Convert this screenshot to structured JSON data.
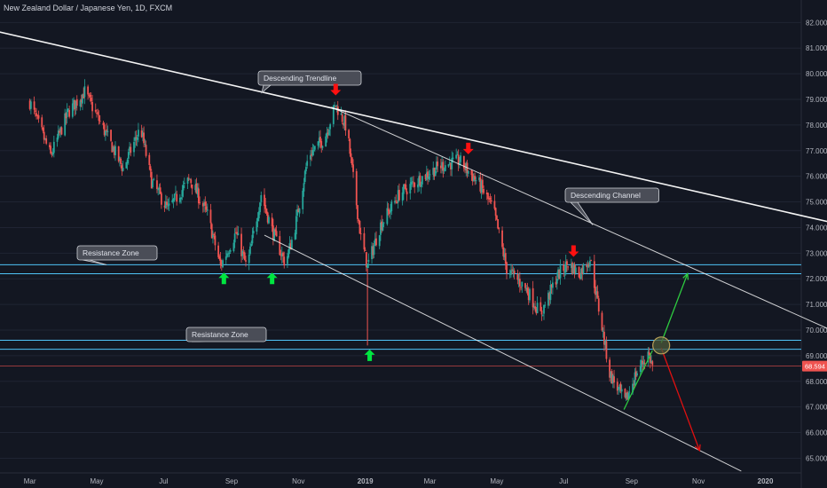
{
  "header": {
    "symbol_title": "New Zealand Dollar / Japanese Yen, 1D, FXCM"
  },
  "colors": {
    "background": "#131722",
    "bull": "#26a69a",
    "bear": "#ef5350",
    "zone_line": "#4fc3f7",
    "trendline": "#ffffff",
    "price_line": "#ef5350",
    "up_arrow": "#00e640",
    "down_arrow": "#ff1010",
    "projection_up": "#2ecc40",
    "projection_down": "#e01010"
  },
  "chart_data": {
    "type": "candlestick",
    "title": "New Zealand Dollar / Japanese Yen, 1D, FXCM",
    "ylim": [
      64.6,
      82.6
    ],
    "y_ticks": [
      "82.000",
      "81.000",
      "80.000",
      "79.000",
      "78.000",
      "77.000",
      "76.000",
      "75.000",
      "74.000",
      "73.000",
      "72.000",
      "71.000",
      "70.000",
      "69.000",
      "68.000",
      "67.000",
      "66.000",
      "65.000"
    ],
    "x_ticks": [
      "Mar",
      "May",
      "Jul",
      "Sep",
      "Nov",
      "2019",
      "Mar",
      "May",
      "Jul",
      "Sep",
      "Nov",
      "2020"
    ],
    "last_price": "68.594",
    "price_path": [
      [
        "2018-03-01",
        78.9
      ],
      [
        "2018-03-20",
        76.8
      ],
      [
        "2018-04-05",
        78.5
      ],
      [
        "2018-04-20",
        79.3
      ],
      [
        "2018-05-10",
        77.6
      ],
      [
        "2018-05-25",
        76.3
      ],
      [
        "2018-06-10",
        77.9
      ],
      [
        "2018-06-20",
        75.8
      ],
      [
        "2018-07-05",
        74.7
      ],
      [
        "2018-07-25",
        75.9
      ],
      [
        "2018-08-10",
        74.5
      ],
      [
        "2018-08-22",
        72.5
      ],
      [
        "2018-09-05",
        73.8
      ],
      [
        "2018-09-15",
        72.4
      ],
      [
        "2018-09-28",
        75.3
      ],
      [
        "2018-10-08",
        73.9
      ],
      [
        "2018-10-20",
        72.6
      ],
      [
        "2018-10-28",
        73.8
      ],
      [
        "2018-11-10",
        76.8
      ],
      [
        "2018-11-25",
        77.5
      ],
      [
        "2018-12-05",
        78.8
      ],
      [
        "2018-12-15",
        77.9
      ],
      [
        "2018-12-28",
        73.6
      ],
      [
        "2019-01-03",
        72.5
      ],
      [
        "2019-01-15",
        74.1
      ],
      [
        "2019-02-01",
        75.3
      ],
      [
        "2019-02-20",
        75.9
      ],
      [
        "2019-03-10",
        76.4
      ],
      [
        "2019-03-28",
        76.6
      ],
      [
        "2019-04-15",
        75.7
      ],
      [
        "2019-04-28",
        74.7
      ],
      [
        "2019-05-10",
        72.4
      ],
      [
        "2019-05-28",
        71.6
      ],
      [
        "2019-06-10",
        70.6
      ],
      [
        "2019-06-25",
        72.1
      ],
      [
        "2019-07-05",
        72.6
      ],
      [
        "2019-07-15",
        72.2
      ],
      [
        "2019-07-25",
        72.8
      ],
      [
        "2019-08-05",
        70.1
      ],
      [
        "2019-08-12",
        68.3
      ],
      [
        "2019-08-26",
        67.2
      ],
      [
        "2019-09-05",
        68.3
      ],
      [
        "2019-09-16",
        69.1
      ],
      [
        "2019-09-20",
        68.6
      ]
    ],
    "spike_low": {
      "date": "2019-01-03",
      "low": 69.4
    },
    "zones": [
      {
        "label": "Resistance Zone",
        "lines": [
          72.55,
          72.2
        ]
      },
      {
        "label": "Resistance Zone",
        "lines": [
          69.6,
          69.25
        ]
      }
    ],
    "trendlines": [
      {
        "label": "Descending Trendline",
        "from": [
          "2018-01-15",
          81.8
        ],
        "to": [
          "2020-03-01",
          74.2
        ],
        "label_date": "2018-10-01"
      },
      {
        "label": "Descending Channel",
        "from": [
          "2018-12-01",
          78.7
        ],
        "to": [
          "2020-03-01",
          70.0
        ],
        "label_date": "2019-07-30"
      },
      {
        "label": "",
        "from": [
          "2018-10-01",
          73.7
        ],
        "to": [
          "2019-12-10",
          64.5
        ]
      }
    ],
    "signals": [
      {
        "type": "up",
        "date": "2018-08-25",
        "price": 72.0
      },
      {
        "type": "up",
        "date": "2018-10-08",
        "price": 72.0
      },
      {
        "type": "up",
        "date": "2019-01-05",
        "price": 69.0
      },
      {
        "type": "down",
        "date": "2018-12-05",
        "price": 79.4
      },
      {
        "type": "down",
        "date": "2019-04-05",
        "price": 77.1
      },
      {
        "type": "down",
        "date": "2019-07-10",
        "price": 73.1
      }
    ],
    "projection": {
      "target_circle": [
        "2019-09-28",
        69.4
      ],
      "up_path": [
        [
          "2019-08-25",
          66.9
        ],
        [
          "2019-09-20",
          69.2
        ]
      ],
      "up_target": [
        [
          "2019-09-28",
          69.5
        ],
        [
          "2019-10-22",
          72.2
        ]
      ],
      "down_target": [
        [
          "2019-09-28",
          69.3
        ],
        [
          "2019-11-02",
          65.3
        ]
      ]
    }
  }
}
